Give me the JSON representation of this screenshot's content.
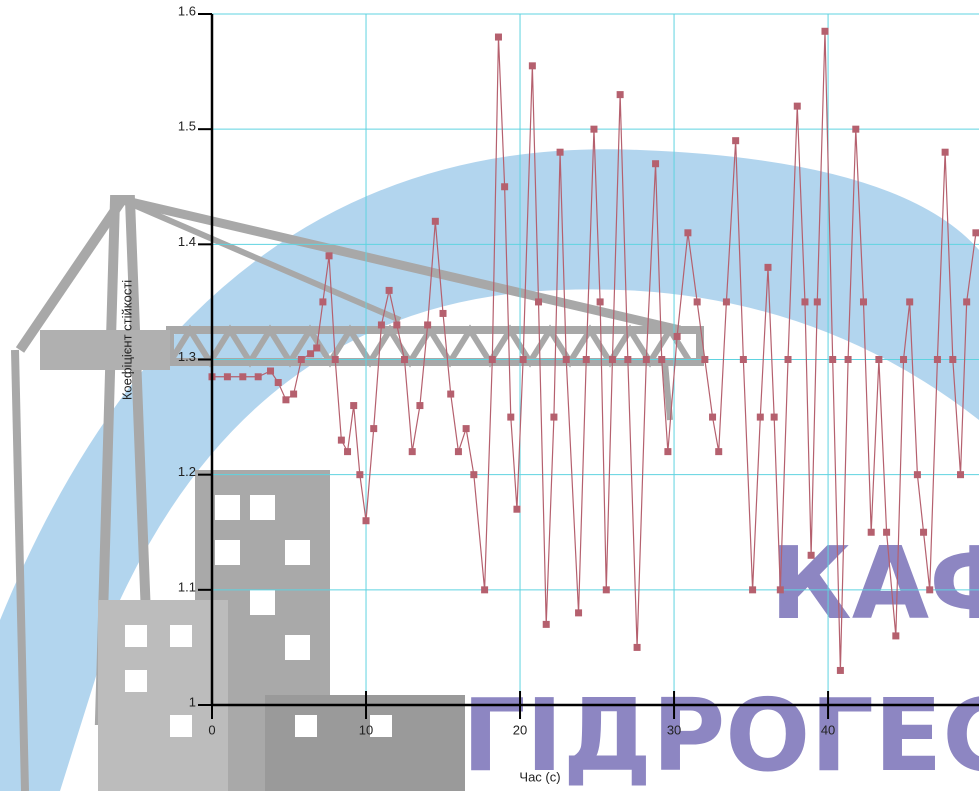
{
  "chart_data": {
    "type": "line",
    "xlabel": "Час (с)",
    "ylabel": "Коефіцієнт стійкості",
    "background_text": [
      "КАФ",
      "ГІДРОГЕС"
    ],
    "xlim": [
      0,
      49.8
    ],
    "ylim": [
      1,
      1.6
    ],
    "xticks": [
      0,
      10,
      20,
      30,
      40
    ],
    "yticks": [
      1,
      1.1,
      1.2,
      1.3,
      1.4,
      1.5,
      1.6
    ],
    "grid": true,
    "grid_color": "#5fd3e0",
    "x": [
      0,
      1,
      2,
      3,
      3.8,
      4.3,
      4.8,
      5.3,
      5.8,
      6.4,
      6.8,
      7.2,
      7.6,
      8.0,
      8.4,
      8.8,
      9.2,
      9.6,
      10.0,
      10.5,
      11.0,
      11.5,
      12.0,
      12.5,
      13.0,
      13.5,
      14.0,
      14.5,
      15.0,
      15.5,
      16.0,
      16.5,
      17.0,
      17.7,
      18.2,
      18.6,
      19.0,
      19.4,
      19.8,
      20.2,
      20.8,
      21.2,
      21.7,
      22.2,
      22.6,
      23.0,
      23.8,
      24.3,
      24.8,
      25.2,
      25.6,
      26.0,
      26.5,
      27.0,
      27.6,
      28.2,
      28.8,
      29.2,
      29.6,
      30.2,
      30.9,
      31.5,
      32.0,
      32.5,
      32.9,
      33.4,
      34.0,
      34.5,
      35.1,
      35.6,
      36.1,
      36.5,
      36.9,
      37.4,
      38.0,
      38.5,
      38.9,
      39.3,
      39.8,
      40.3,
      40.8,
      41.3,
      41.8,
      42.3,
      42.8,
      43.3,
      43.8,
      44.4,
      44.9,
      45.3,
      45.8,
      46.2,
      46.6,
      47.1,
      47.6,
      48.1,
      48.6,
      49.0,
      49.6
    ],
    "series": [
      {
        "color": "#b5606e",
        "values": [
          1.285,
          1.285,
          1.285,
          1.285,
          1.29,
          1.28,
          1.265,
          1.27,
          1.3,
          1.305,
          1.31,
          1.35,
          1.39,
          1.3,
          1.23,
          1.22,
          1.26,
          1.2,
          1.16,
          1.24,
          1.33,
          1.36,
          1.33,
          1.3,
          1.22,
          1.26,
          1.33,
          1.42,
          1.34,
          1.27,
          1.22,
          1.24,
          1.2,
          1.1,
          1.3,
          1.58,
          1.45,
          1.25,
          1.17,
          1.3,
          1.555,
          1.35,
          1.07,
          1.25,
          1.48,
          1.3,
          1.08,
          1.3,
          1.5,
          1.35,
          1.1,
          1.3,
          1.53,
          1.3,
          1.05,
          1.3,
          1.47,
          1.3,
          1.22,
          1.32,
          1.41,
          1.35,
          1.3,
          1.25,
          1.22,
          1.35,
          1.49,
          1.3,
          1.1,
          1.25,
          1.38,
          1.25,
          1.1,
          1.3,
          1.52,
          1.35,
          1.13,
          1.35,
          1.585,
          1.3,
          1.03,
          1.3,
          1.5,
          1.35,
          1.15,
          1.3,
          1.15,
          1.06,
          1.3,
          1.35,
          1.2,
          1.15,
          1.1,
          1.3,
          1.48,
          1.3,
          1.2,
          1.35,
          1.41
        ]
      }
    ]
  }
}
